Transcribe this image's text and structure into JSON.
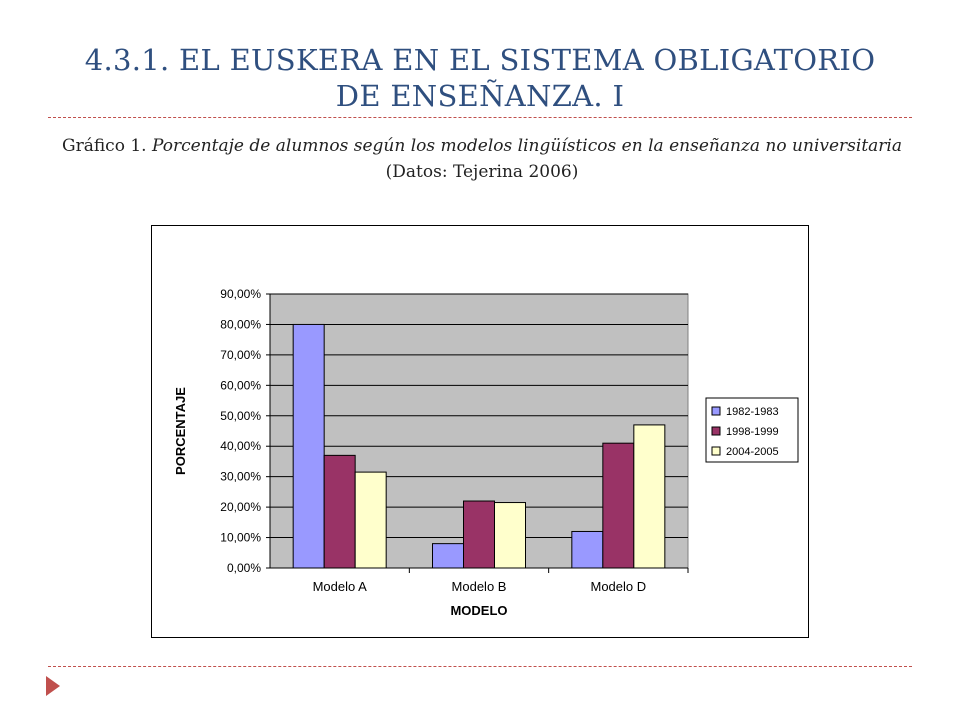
{
  "slide": {
    "title_line1": "4.3.1. EL EUSKERA EN EL SISTEMA OBLIGATORIO",
    "title_line2": "DE ENSEÑANZA. I",
    "caption_prefix": "Gráfico 1. ",
    "caption_italic_1": "Porcentaje de alumnos según los modelos lingüísticos en la enseñanza no universitaria",
    "caption_suffix": " (Datos: Tejerina 2006)"
  },
  "chart_data": {
    "type": "bar",
    "categories": [
      "Modelo A",
      "Modelo B",
      "Modelo D"
    ],
    "series": [
      {
        "name": "1982-1983",
        "values": [
          80.0,
          8.0,
          12.0
        ],
        "color": "#9999ff"
      },
      {
        "name": "1998-1999",
        "values": [
          37.0,
          22.0,
          41.0
        ],
        "color": "#993366"
      },
      {
        "name": "2004-2005",
        "values": [
          31.5,
          21.5,
          47.0
        ],
        "color": "#ffffcc"
      }
    ],
    "xlabel": "MODELO",
    "ylabel": "PORCENTAJE",
    "ylim": [
      0,
      90
    ],
    "yticks": [
      "0,00%",
      "10,00%",
      "20,00%",
      "30,00%",
      "40,00%",
      "50,00%",
      "60,00%",
      "70,00%",
      "80,00%",
      "90,00%"
    ],
    "grid": true,
    "plot_background": "#c0c0c0",
    "legend_position": "right"
  }
}
